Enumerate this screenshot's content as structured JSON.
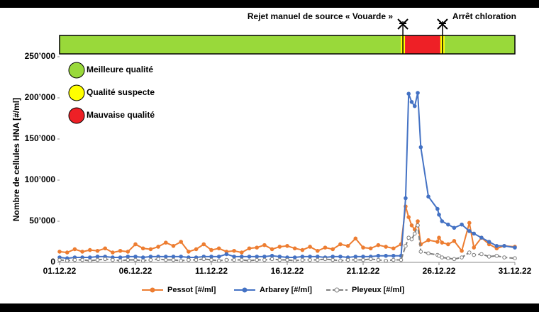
{
  "chart_data": {
    "type": "line",
    "y_label": "Nombre de cellules HNA [#/ml]",
    "x": [
      1,
      1.5,
      2,
      2.5,
      3,
      3.5,
      4,
      4.5,
      5,
      5.5,
      6,
      6.5,
      7,
      7.5,
      8,
      8.5,
      9,
      9.5,
      10,
      10.5,
      11,
      11.5,
      12,
      12.5,
      13,
      13.5,
      14,
      14.5,
      15,
      15.5,
      16,
      16.5,
      17,
      17.5,
      18,
      18.5,
      19,
      19.5,
      20,
      20.5,
      21,
      21.5,
      22,
      22.5,
      23,
      23.5,
      23.8,
      24,
      24.2,
      24.4,
      24.6,
      24.8,
      25.3,
      25.9,
      26,
      26.2,
      26.6,
      27,
      27.5,
      28,
      28.3,
      28.8,
      29.3,
      29.8,
      30.3,
      31
    ],
    "series": [
      {
        "name": "Pessot [#/ml]",
        "color": "#ed7d31",
        "dashed": false,
        "values": [
          13000,
          12000,
          16000,
          13000,
          15000,
          14000,
          17000,
          12000,
          14000,
          13000,
          22000,
          17000,
          16000,
          19000,
          24000,
          20000,
          25000,
          13000,
          16000,
          22000,
          15000,
          17000,
          13000,
          14000,
          12000,
          17000,
          18000,
          21000,
          16000,
          19000,
          20000,
          17000,
          15000,
          19000,
          14000,
          18000,
          16000,
          22000,
          20000,
          29000,
          18000,
          17000,
          21000,
          19000,
          17000,
          22000,
          68000,
          55000,
          45000,
          40000,
          50000,
          22000,
          27000,
          25000,
          30000,
          24000,
          22000,
          26000,
          14000,
          48000,
          18000,
          30000,
          22000,
          17000,
          20000,
          19000
        ]
      },
      {
        "name": "Arbarey [#/ml]",
        "color": "#4472c4",
        "dashed": false,
        "values": [
          6000,
          5000,
          6000,
          6000,
          6000,
          7000,
          7000,
          6000,
          6000,
          7000,
          7000,
          6000,
          7000,
          7000,
          7000,
          7000,
          7000,
          6000,
          6000,
          7000,
          7000,
          7000,
          10000,
          7000,
          7000,
          7000,
          7000,
          7000,
          8000,
          7000,
          6000,
          6000,
          7000,
          7000,
          7000,
          6000,
          7000,
          7000,
          6000,
          7000,
          7000,
          7000,
          8000,
          8000,
          8000,
          8000,
          78000,
          205000,
          195000,
          190000,
          206000,
          140000,
          80000,
          65000,
          58000,
          50000,
          46000,
          42000,
          46000,
          38000,
          35000,
          30000,
          25000,
          20000,
          20000,
          18000
        ]
      },
      {
        "name": "Pleyeux  [#/ml]",
        "color": "#7f7f7f",
        "dashed": true,
        "values": [
          3000,
          2000,
          3000,
          3000,
          2000,
          3000,
          4000,
          3000,
          2000,
          3000,
          3000,
          2000,
          3000,
          4000,
          3000,
          3000,
          2000,
          3000,
          3000,
          4000,
          3000,
          2000,
          3000,
          3000,
          3000,
          2000,
          3000,
          3000,
          4000,
          3000,
          3000,
          2000,
          3000,
          3000,
          3000,
          4000,
          3000,
          2000,
          3000,
          3000,
          3000,
          4000,
          3000,
          2000,
          3000,
          3000,
          20000,
          30000,
          28000,
          35000,
          45000,
          13000,
          11000,
          9000,
          8000,
          6000,
          5000,
          4000,
          6000,
          12000,
          9000,
          10000,
          7000,
          8000,
          6000,
          5000
        ]
      }
    ],
    "xlim": [
      1,
      31
    ],
    "xticks": [
      {
        "value": 1,
        "label": "01.12.22"
      },
      {
        "value": 6,
        "label": "06.12.22"
      },
      {
        "value": 11,
        "label": "11.12.22"
      },
      {
        "value": 16,
        "label": "16.12.22"
      },
      {
        "value": 21,
        "label": "21.12.22"
      },
      {
        "value": 26,
        "label": "26.12.22"
      },
      {
        "value": 31,
        "label": "31.12.22"
      }
    ],
    "ylim": [
      0,
      250000
    ],
    "yticks": [
      0,
      {
        "value": 50000,
        "label": "50’000"
      },
      {
        "value": 100000,
        "label": "100’000"
      },
      {
        "value": 150000,
        "label": "150’000"
      },
      {
        "value": 200000,
        "label": "200’000"
      },
      {
        "value": 250000,
        "label": "250’000"
      }
    ],
    "quality_levels": [
      {
        "label": "Meilleure qualité",
        "color": "#99d93a"
      },
      {
        "label": "Qualité suspecte",
        "color": "#ffff00"
      },
      {
        "label": "Mauvaise qualité",
        "color": "#ee2026"
      }
    ],
    "quality_periods": [
      {
        "start": 1,
        "end": 23.48,
        "color": "#99d93a"
      },
      {
        "start": 23.48,
        "end": 23.76,
        "color": "#ffff00"
      },
      {
        "start": 23.76,
        "end": 26.09,
        "color": "#ee2026"
      },
      {
        "start": 26.09,
        "end": 26.37,
        "color": "#ffff00"
      },
      {
        "start": 26.37,
        "end": 31,
        "color": "#99d93a"
      }
    ],
    "annotations": [
      {
        "text": "Rejet manuel de source « Vouarde »",
        "x": 23.62,
        "side": "left"
      },
      {
        "text": "Arrêt chloration",
        "x": 26.23,
        "side": "right"
      }
    ]
  }
}
